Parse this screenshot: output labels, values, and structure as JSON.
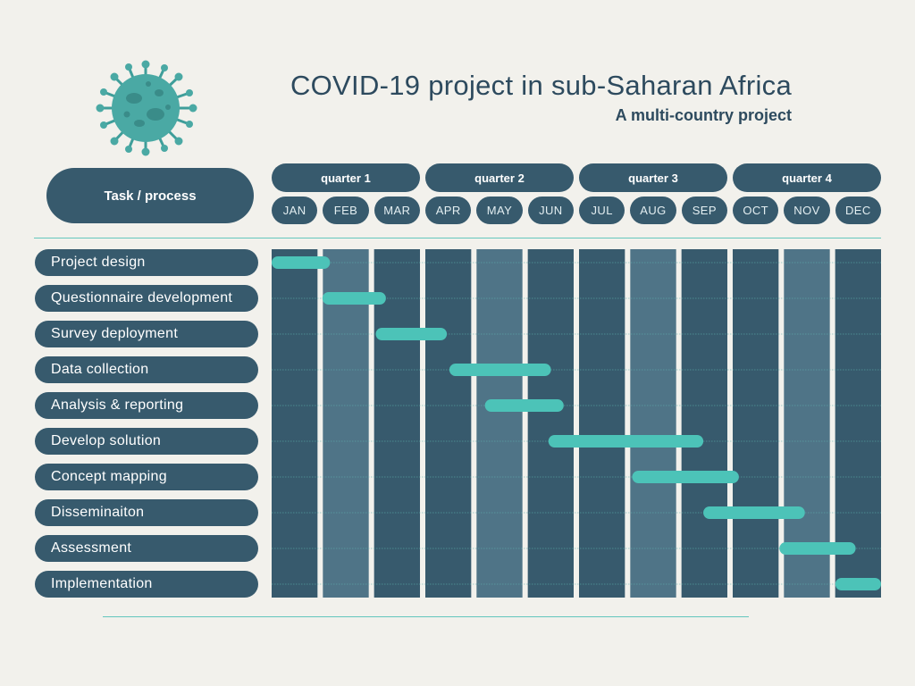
{
  "header": {
    "title": "COVID-19 project in sub-Saharan Africa",
    "subtitle": "A multi-country project",
    "icon": "virus-icon"
  },
  "task_header": "Task / process",
  "quarters": [
    "quarter 1",
    "quarter 2",
    "quarter 3",
    "quarter 4"
  ],
  "months": [
    "JAN",
    "FEB",
    "MAR",
    "APR",
    "MAY",
    "JUN",
    "JUL",
    "AUG",
    "SEP",
    "OCT",
    "NOV",
    "DEC"
  ],
  "tasks": [
    "Project design",
    "Questionnaire development",
    "Survey deployment",
    "Data collection",
    "Analysis & reporting",
    "Develop solution",
    "Concept mapping",
    "Disseminaiton",
    "Assessment",
    "Implementation"
  ],
  "colors": {
    "background": "#f2f1ec",
    "dark_column": "#375a6d",
    "light_column": "#4f7487",
    "bar": "#4cc3b8",
    "text": "#2d4a5e",
    "rule": "#64c7bd"
  },
  "chart_data": {
    "type": "gantt",
    "x_unit": "month",
    "x_range": [
      0,
      12
    ],
    "categories": [
      "Project design",
      "Questionnaire development",
      "Survey deployment",
      "Data collection",
      "Analysis & reporting",
      "Develop solution",
      "Concept mapping",
      "Disseminaiton",
      "Assessment",
      "Implementation"
    ],
    "bars": [
      {
        "task": "Project design",
        "start": 0.0,
        "end": 1.15
      },
      {
        "task": "Questionnaire development",
        "start": 1.0,
        "end": 2.25
      },
      {
        "task": "Survey deployment",
        "start": 2.05,
        "end": 3.45
      },
      {
        "task": "Data collection",
        "start": 3.5,
        "end": 5.5
      },
      {
        "task": "Analysis & reporting",
        "start": 4.2,
        "end": 5.75
      },
      {
        "task": "Develop solution",
        "start": 5.45,
        "end": 8.5
      },
      {
        "task": "Concept mapping",
        "start": 7.1,
        "end": 9.2
      },
      {
        "task": "Disseminaiton",
        "start": 8.5,
        "end": 10.5
      },
      {
        "task": "Assessment",
        "start": 10.0,
        "end": 11.5
      },
      {
        "task": "Implementation",
        "start": 11.1,
        "end": 12.0
      }
    ],
    "highlighted_months": [
      "FEB",
      "MAY",
      "AUG",
      "NOV"
    ],
    "grid": true
  }
}
